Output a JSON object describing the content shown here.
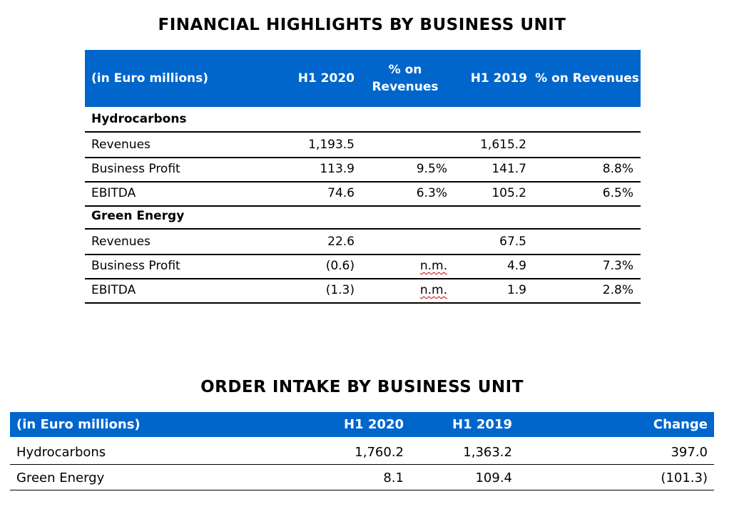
{
  "financial": {
    "title": "FINANCIAL HIGHLIGHTS BY BUSINESS UNIT",
    "headers": {
      "label": "(in Euro millions)",
      "h2020": "H1 2020",
      "pct2020": "% on Revenues",
      "h2019": "H1 2019",
      "pct2019": "% on Revenues"
    },
    "sections": [
      {
        "name": "Hydrocarbons",
        "rows": [
          {
            "label": "Revenues",
            "h2020": "1,193.5",
            "pct2020": "",
            "h2019": "1,615.2",
            "pct2019": ""
          },
          {
            "label": "Business Profit",
            "h2020": "113.9",
            "pct2020": "9.5%",
            "h2019": "141.7",
            "pct2019": "8.8%"
          },
          {
            "label": "EBITDA",
            "h2020": "74.6",
            "pct2020": "6.3%",
            "h2019": "105.2",
            "pct2019": "6.5%"
          }
        ]
      },
      {
        "name": "Green Energy",
        "rows": [
          {
            "label": "Revenues",
            "h2020": "22.6",
            "pct2020": "",
            "h2019": "67.5",
            "pct2019": ""
          },
          {
            "label": "Business Profit",
            "h2020": "(0.6)",
            "pct2020": "n.m.",
            "h2019": "4.9",
            "pct2019": "7.3%"
          },
          {
            "label": "EBITDA",
            "h2020": "(1.3)",
            "pct2020": "n.m.",
            "h2019": "1.9",
            "pct2019": "2.8%"
          }
        ]
      }
    ]
  },
  "orders": {
    "title": "ORDER INTAKE BY BUSINESS UNIT",
    "headers": {
      "label": "(in Euro millions)",
      "h2020": "H1 2020",
      "h2019": "H1 2019",
      "change": "Change"
    },
    "rows": [
      {
        "label": "Hydrocarbons",
        "h2020": "1,760.2",
        "h2019": "1,363.2",
        "change": "397.0"
      },
      {
        "label": "Green Energy",
        "h2020": "8.1",
        "h2019": "109.4",
        "change": "(101.3)"
      }
    ]
  }
}
